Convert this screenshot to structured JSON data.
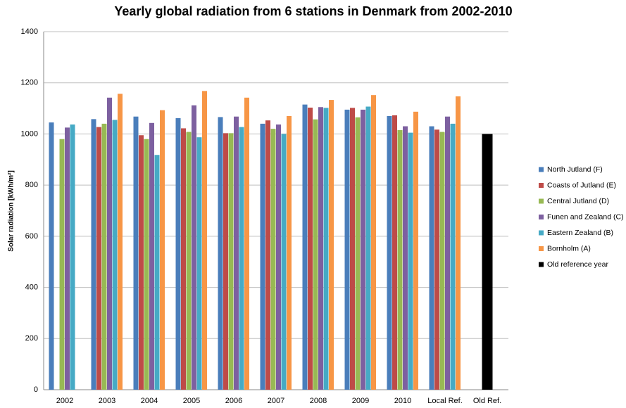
{
  "chart_data": {
    "type": "bar",
    "title": "Yearly global radiation from 6 stations in Denmark from 2002-2010",
    "y_label": "Solar radiation [kWh/m²]",
    "categories": [
      "2002",
      "2003",
      "2004",
      "2005",
      "2006",
      "2007",
      "2008",
      "2009",
      "2010",
      "Local Ref.",
      "Old Ref."
    ],
    "series": [
      {
        "name": "North Jutland (F)",
        "color": "#4a7ebb",
        "values": [
          1045,
          1058,
          1068,
          1062,
          1066,
          1040,
          1115,
          1095,
          1070,
          1030,
          null
        ]
      },
      {
        "name": "Coasts of Jutland (E)",
        "color": "#be4b48",
        "values": [
          null,
          1027,
          995,
          1022,
          1003,
          1053,
          1103,
          1102,
          1073,
          1017,
          null
        ]
      },
      {
        "name": "Central Jutland (D)",
        "color": "#98b954",
        "values": [
          980,
          1040,
          980,
          1008,
          1003,
          1020,
          1057,
          1065,
          1015,
          1008,
          null
        ]
      },
      {
        "name": "Funen and Zealand (C)",
        "color": "#7d60a0",
        "values": [
          1025,
          1142,
          1043,
          1112,
          1068,
          1037,
          1105,
          1095,
          1030,
          1068,
          null
        ]
      },
      {
        "name": "Eastern Zealand (B)",
        "color": "#46aac5",
        "values": [
          1037,
          1055,
          918,
          987,
          1027,
          1000,
          1102,
          1107,
          1005,
          1040,
          null
        ]
      },
      {
        "name": "Bornholm (A)",
        "color": "#f79646",
        "values": [
          null,
          1157,
          1093,
          1168,
          1142,
          1070,
          1133,
          1152,
          1087,
          1147,
          null
        ]
      },
      {
        "name": "Old reference year",
        "color": "#000000",
        "values": [
          null,
          null,
          null,
          null,
          null,
          null,
          null,
          null,
          null,
          null,
          1000
        ]
      }
    ],
    "ylim": [
      0,
      1400
    ],
    "yticks": [
      0,
      200,
      400,
      600,
      800,
      1000,
      1200,
      1400
    ],
    "grid": true,
    "legend": "right"
  }
}
